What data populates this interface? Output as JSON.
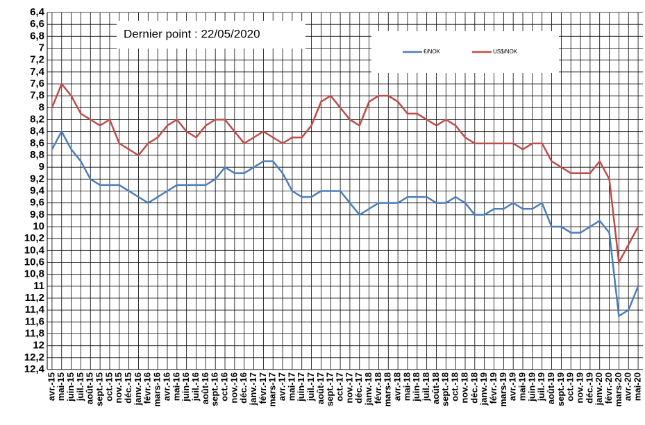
{
  "chart_data": {
    "type": "line",
    "title": "Dernier point : 22/05/2020",
    "categories": [
      "avr.-15",
      "mai-15",
      "juin-15",
      "juil.-15",
      "août-15",
      "sept.-15",
      "oct.-15",
      "nov.-15",
      "déc.-15",
      "janv.-16",
      "févr.-16",
      "mars-16",
      "avr.-16",
      "mai-16",
      "juin-16",
      "juil.-16",
      "août-16",
      "sept.-16",
      "oct.-16",
      "nov.-16",
      "déc.-16",
      "janv.-17",
      "févr.-17",
      "mars-17",
      "avr.-17",
      "mai-17",
      "juin-17",
      "juil.-17",
      "août-17",
      "sept.-17",
      "oct.-17",
      "nov.-17",
      "déc.-17",
      "janv.-18",
      "févr.-18",
      "mars-18",
      "avr.-18",
      "mai-18",
      "juin-18",
      "juil.-18",
      "août-18",
      "sept.-18",
      "oct.-18",
      "nov.-18",
      "déc.-18",
      "janv.-19",
      "févr.-19",
      "mars-19",
      "avr.-19",
      "mai-19",
      "juin-19",
      "juil.-19",
      "août-19",
      "sept.-19",
      "oct.-19",
      "nov.-19",
      "déc.-19",
      "janv.-20",
      "févr.-20",
      "mars-20",
      "avr.-20",
      "mai-20"
    ],
    "series": [
      {
        "name": "€/NOK",
        "color": "#4a7ebb",
        "values": [
          8.7,
          8.4,
          8.7,
          8.9,
          9.2,
          9.3,
          9.3,
          9.3,
          9.4,
          9.5,
          9.6,
          9.5,
          9.4,
          9.3,
          9.3,
          9.3,
          9.3,
          9.2,
          9.0,
          9.1,
          9.1,
          9.0,
          8.9,
          8.9,
          9.1,
          9.4,
          9.5,
          9.5,
          9.4,
          9.4,
          9.4,
          9.6,
          9.8,
          9.7,
          9.6,
          9.6,
          9.6,
          9.5,
          9.5,
          9.5,
          9.6,
          9.6,
          9.5,
          9.6,
          9.8,
          9.8,
          9.7,
          9.7,
          9.6,
          9.7,
          9.7,
          9.6,
          10.0,
          10.0,
          10.1,
          10.1,
          10.0,
          9.9,
          10.1,
          11.5,
          11.4,
          11.0
        ]
      },
      {
        "name": "US$/NOK",
        "color": "#be4b48",
        "values": [
          8.0,
          7.6,
          7.8,
          8.1,
          8.2,
          8.3,
          8.2,
          8.6,
          8.7,
          8.8,
          8.6,
          8.5,
          8.3,
          8.2,
          8.4,
          8.5,
          8.3,
          8.2,
          8.2,
          8.4,
          8.6,
          8.5,
          8.4,
          8.5,
          8.6,
          8.5,
          8.5,
          8.3,
          7.9,
          7.8,
          8.0,
          8.2,
          8.3,
          7.9,
          7.8,
          7.8,
          7.9,
          8.1,
          8.1,
          8.2,
          8.3,
          8.2,
          8.3,
          8.5,
          8.6,
          8.6,
          8.6,
          8.6,
          8.6,
          8.7,
          8.6,
          8.6,
          8.9,
          9.0,
          9.1,
          9.1,
          9.1,
          8.9,
          9.2,
          10.6,
          10.3,
          10.0
        ]
      }
    ],
    "ylim": [
      12.4,
      6.4
    ],
    "yticks": [
      {
        "value": 6.4,
        "label": "6,4"
      },
      {
        "value": 6.6,
        "label": "6,6"
      },
      {
        "value": 6.8,
        "label": "6,8"
      },
      7,
      {
        "value": 7.2,
        "label": "7,2"
      },
      {
        "value": 7.4,
        "label": "7,4"
      },
      {
        "value": 7.6,
        "label": "7,6"
      },
      {
        "value": 7.8,
        "label": "7,8"
      },
      8,
      {
        "value": 8.2,
        "label": "8,2"
      },
      {
        "value": 8.4,
        "label": "8,4"
      },
      {
        "value": 8.6,
        "label": "8,6"
      },
      {
        "value": 8.8,
        "label": "8,8"
      },
      9,
      {
        "value": 9.2,
        "label": "9,2"
      },
      {
        "value": 9.4,
        "label": "9,4"
      },
      {
        "value": 9.6,
        "label": "9,6"
      },
      {
        "value": 9.8,
        "label": "9,8"
      },
      10,
      {
        "value": 10.2,
        "label": "10,2"
      },
      {
        "value": 10.4,
        "label": "10,4"
      },
      {
        "value": 10.6,
        "label": "10,6"
      },
      {
        "value": 10.8,
        "label": "10,8"
      },
      11,
      {
        "value": 11.2,
        "label": "11,2"
      },
      {
        "value": 11.4,
        "label": "11,4"
      },
      {
        "value": 11.6,
        "label": "11,6"
      },
      {
        "value": 11.8,
        "label": "11,8"
      },
      12,
      {
        "value": 12.2,
        "label": "12,2"
      },
      {
        "value": 12.4,
        "label": "12,4"
      }
    ],
    "grid": true
  }
}
